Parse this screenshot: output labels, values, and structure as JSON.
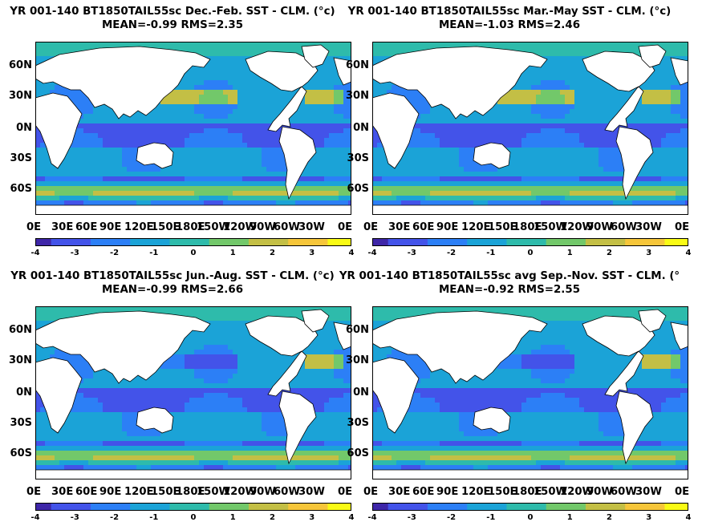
{
  "panels": [
    {
      "line1": "YR 001-140 BT1850TAIL55sc  Dec.-Feb. SST - CLM. (°c)",
      "line2": "MEAN=-0.99   RMS=2.35",
      "season": "djf"
    },
    {
      "line1": "YR 001-140 BT1850TAIL55sc Mar.-May SST - CLM. (°c)",
      "line2": "MEAN=-1.03   RMS=2.46",
      "season": "mam"
    },
    {
      "line1": "YR 001-140 BT1850TAIL55sc Jun.-Aug. SST - CLM. (°c)",
      "line2": "MEAN=-0.99   RMS=2.66",
      "season": "jja"
    },
    {
      "line1": "YR 001-140 BT1850TAIL55sc avg Sep.-Nov. SST - CLM. (°",
      "line2": "MEAN=-0.92   RMS=2.55",
      "season": "son"
    }
  ],
  "lat_labels": [
    "60N",
    "30N",
    "0N",
    "30S",
    "60S"
  ],
  "lon_labels": [
    "0E",
    "30E",
    "60E",
    "90E",
    "120E",
    "150E",
    "180E",
    "150W",
    "120W",
    "90W",
    "60W",
    "30W",
    "0E"
  ],
  "colorbar": {
    "ticks": [
      "-4",
      "-3",
      "-2",
      "-1",
      "0",
      "1",
      "2",
      "3",
      "4"
    ],
    "colors": [
      "#3e26a8",
      "#4353e9",
      "#2c7ff6",
      "#1ba3d7",
      "#2ebbab",
      "#72c86a",
      "#c3bf45",
      "#f6c63a",
      "#f9fb15"
    ]
  }
}
